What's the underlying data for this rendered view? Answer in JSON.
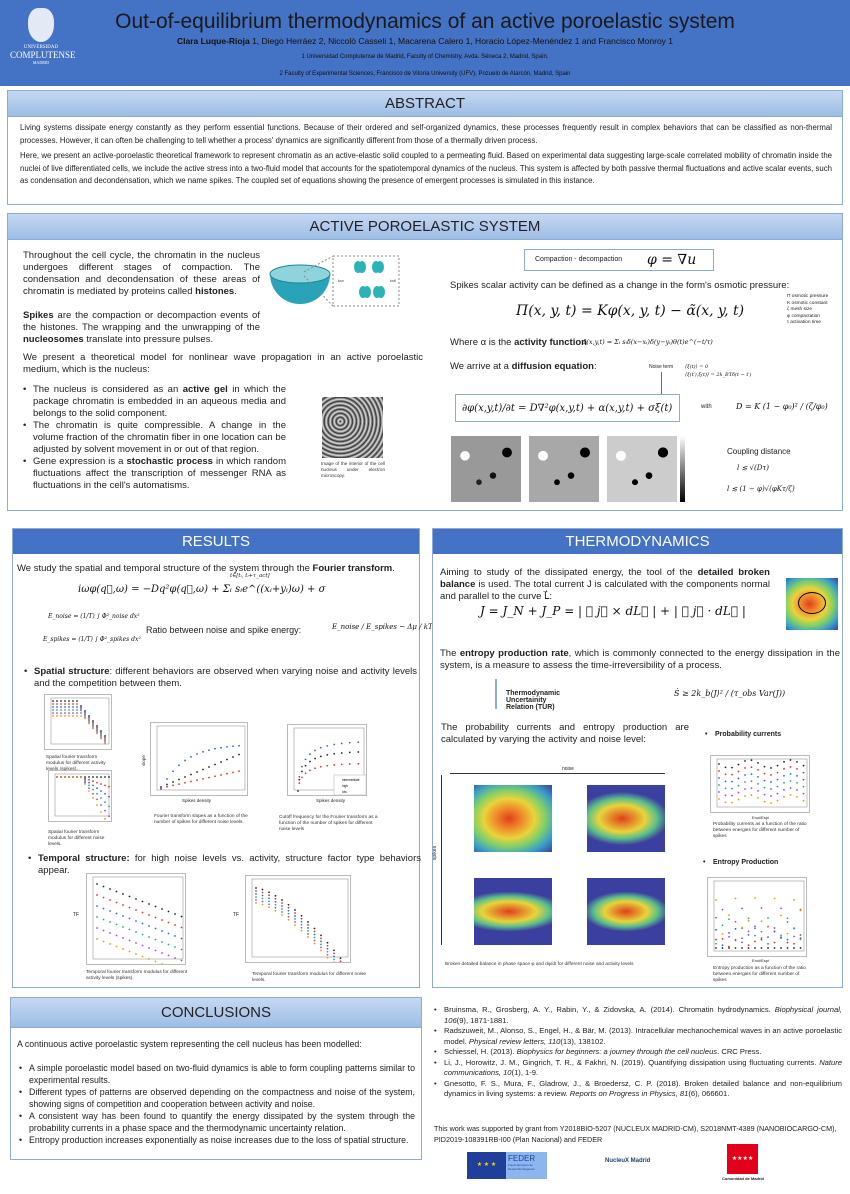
{
  "header": {
    "title": "Out-of-equilibrium thermodynamics of an active poroelastic system",
    "authors_lead": "Clara Luque-Rioja",
    "authors_rest": " 1, Diego Herráez 2, Niccolò Casseli 1, Macarena Calero 1, Horacio López-Menéndez 1 and Francisco Monroy 1",
    "affiliation_1": "1 Universidad Complutense de Madrid, Faculty of Chemistry, Avda. Séneca 2, Madrid, Spain.",
    "affiliation_2": "2 Faculty of Experimental Sciences, Francisco de Vitoria University (UFV), Pozuelo de Alarcón, Madrid, Spain",
    "logo": {
      "line1": "UNIVERSIDAD",
      "line2": "COMPLUTENSE",
      "line3": "MADRID"
    }
  },
  "abstract": {
    "title": "ABSTRACT",
    "p1": "Living systems dissipate energy constantly as they perform essential functions. Because of their ordered and self-organized dynamics, these processes frequently result in complex behaviors that can be classified as non-thermal processes. However, it can often be challenging to tell whether a process' dynamics are significantly different from those of a thermally driven process.",
    "p2": "Here, we present an active-poroelastic theoretical framework to represent chromatin as an active-elastic solid coupled to a permeating fluid. Based on experimental data suggesting large-scale correlated mobility of chromatin inside the nuclei of live differentiated cells, we include the active stress into a two-fluid model that accounts for the spatiotemporal dynamics of the nucleus. This system is affected by both passive thermal fluctuations and active scalar events, such as condensation and decondensation, which we name spikes. The coupled set of equations showing the presence of emergent processes is simulated in this instance."
  },
  "aps": {
    "title": "ACTIVE POROELASTIC SYSTEM",
    "p1a": "Throughout the cell cycle, the chromatin in the nucleus undergoes different stages of compaction. The condensation and decondensation of these areas of chromatin is mediated by proteins called ",
    "p1b": "histones",
    "p1c": ".",
    "p2a": "Spikes",
    "p2b": " are the compaction or decompaction events of the histones. The wrapping and the unwrapping of the ",
    "p2c": "nucleosomes",
    "p2d": " translate into pressure pulses.",
    "p3": "We present a theoretical model for nonlinear wave propagation in an active poroelastic medium, which is the nucleus:",
    "b1a": "The nucleus is considered as an ",
    "b1b": "active gel",
    "b1c": " in which the package chromatin is embedded in an aqueous media and belongs to the solid component.",
    "b2": "The chromatin is quite compressible. A change in the volume fraction of the chromatin fiber in one location can be adjusted by solvent movement in or out of that region.",
    "b3a": "Gene expression is a ",
    "b3b": "stochastic process",
    "b3c": " in which random fluctuations affect the transcription of messenger RNA as fluctuations in the cell's automatisms.",
    "micro_caption": "Image of the interior of the cell nucleus under electron microscopy.",
    "kon": "kon",
    "koff": "koff",
    "compaction_label": "Compaction - decompaction",
    "compaction_eq": "φ = ∇u",
    "osmotic_text": "Spikes scalar activity can be defined as a change in the form's osmotic pressure:",
    "osmotic_eq": "Π(x, y, t) = Kφ(x, y, t) − α̃(x, y, t)",
    "legend": [
      "Π osmotic pressure",
      "K osmotic constant",
      "ζ mesh size",
      "φ compactation",
      "τ activation time"
    ],
    "activity_a": "Where α is the ",
    "activity_b": "activity function",
    "activity_eq": "α̃(x,y,t) = Σᵢ sᵢδ(x−xᵢ)δ(y−yᵢ)θ(t)e^(−t/τ)",
    "diffusion_a": "We arrive at a ",
    "diffusion_b": "diffusion equation",
    ":": ":",
    "diffusion_c": ":",
    "noise_label": "Noise term",
    "noise_eq1": "⟨ξ(t)⟩ = 0",
    "noise_eq2": "⟨ξ(t′),ξ(t)⟩ = 2k_BTδ(t − t′)",
    "diffusion_eq": "∂φ(x,y,t)/∂t = D∇²φ(x,y,t) + α(x,y,t) + σξ(t)",
    "with": "with",
    "D_eq": "D = K (1 − φ₀)² / (ζ/φ₀)",
    "coupling_title": "Coupling distance",
    "coupling_eq1": "l ≲ √(Dτ)",
    "coupling_eq2": "l ≲ (1 − φ)√(φKτ/ζ)"
  },
  "results": {
    "title": "RESULTS",
    "intro_a": "We study the spatial and temporal structure of the system through the ",
    "intro_b": "Fourier transform",
    "ft_eq": "iωφ(q⃗,ω) = −Dq²φ(q⃗,ω) + Σᵢ sᵢe^((xᵢ+yᵢ)ω) + σ",
    "ft_sum_range": "t∈[tᵢ, tᵢ+τ_act]",
    "e_noise": "E_noise = (1/T) ∫ Φ²_noise dx²",
    "e_spikes": "E_spikes = (1/T) ∫ Φ²_spikes dx²",
    "ratio_label": "Ratio between noise and spike energy:",
    "ratio_eq": "E_noise / E_spikes ~ Δμ / kT",
    "spatial_a": "Spatial structure",
    "spatial_b": ": different behaviors are observed when varying noise and activity levels and the competition between them.",
    "cap1": "Spatial fourier transform modulus for different activity levels (spikes).",
    "cap2": "Spatial fourier transform modulus for different noise levels.",
    "cap3": "Fourier transform slopes as a function of the number of spikes for different noise levels.",
    "cap4": "Cutoff frequency for the Fourier transform as a function of the number of spikes for different noise levels",
    "fig3_xlabel": "Spikes density",
    "fig3_ylabel": "slope",
    "fig4_xlabel": "Spikes density",
    "fig4_legend": [
      "intermediate",
      "high",
      "low"
    ],
    "temporal_a": "Temporal structure:",
    "temporal_b": " for high noise levels vs. activity, structure factor type behaviors appear.",
    "cap5": "Temporal fourier transform modulus for different activity levels (spikes).",
    "cap6": "Temporal fourier transform modulus for different noise levels.",
    "tf_ylabel": "TF",
    "tf_xlabel": "f"
  },
  "thermo": {
    "title": "THERMODYNAMICS",
    "p1a": "Aiming to study of the dissipated energy, the tool of the ",
    "p1b": "detailed broken balance",
    "p1c": " is used. The total current J is calculated with the components normal and parallel to the curve L⃗:",
    "j_eq": "J = J_N + J_P = | ∮ j⃗ × dL⃗ | + | ∮ j⃗ · dL⃗ |",
    "p2a": "The ",
    "p2b": "entropy production rate",
    "p2c": ", which is commonly connected to the energy dissipation in the system, is a measure to assess the time-irreversibility of a process.",
    "tur_label": "Thermodynamic Uncertainity Relation (TUR)",
    "tur_eq": "Ṡ ≥ 2k_b⟨J⟩² / (τ_obs Var(J))",
    "p3": "The probability currents and entropy production are calculated by varying the activity and noise level:",
    "noise_axis": "noise",
    "spikes_axis": "spikes",
    "phase_caption": "Broken detailed balance in phase space φ and dφ/dt for different noise and activity levels",
    "prob_title": "Probability currents",
    "prob_caption": "Probability currents as a function of the ratio between energies for different number of spikes",
    "prob_legend": [
      "1 spike",
      "20 spikes",
      "50 spikes",
      "100 spikes",
      "200 spikes",
      "400 spikes",
      "1000 spikes"
    ],
    "entropy_title": "Entropy Production",
    "entropy_caption": "Entropy production as a function of the ratio between energies for different number of spikes",
    "entropy_legend": [
      "20 spikes",
      "50 spikes",
      "100 spikes",
      "200 spikes",
      "400 spikes",
      "1000 spikes"
    ],
    "xlabel": "Enoi/Espi"
  },
  "conclusions": {
    "title": "CONCLUSIONS",
    "intro": "A continuous active poroelastic system representing the cell nucleus has been modelled:",
    "items": [
      "A simple poroelastic model based on two-fluid dynamics is able to form coupling patterns similar to experimental results.",
      "Different types of patterns are observed depending on the compactness and noise of the system, showing signs of competition and cooperation between activity and noise.",
      "A consistent way has been found to quantify the energy dissipated by the system through the probability currents in a phase space and the thermodynamic uncertainty relation.",
      "Entropy production increases exponentially as noise increases due to the loss of spatial structure."
    ]
  },
  "references": [
    {
      "a": "Bruinsma, R., Grosberg, A. Y., Rabin, Y., & Zidovska, A. (2014). Chromatin hydrodynamics. ",
      "i": "Biophysical journal, 106",
      "b": "(9), 1871-1881."
    },
    {
      "a": "Radszuweit, M., Alonso, S., Engel, H., & Bär, M. (2013). Intracellular mechanochemical waves in an active poroelastic model. ",
      "i": "Physical review letters, 110",
      "b": "(13), 138102."
    },
    {
      "a": "Schiessel, H. (2013). ",
      "i": "Biophysics for beginners: a journey through the cell nucleus",
      "b": ". CRC Press."
    },
    {
      "a": "Li, J., Horowitz, J. M., Gingrich, T. R., & Fakhri, N. (2019). Quantifying dissipation using fluctuating currents. ",
      "i": "Nature communications, 10",
      "b": "(1), 1-9."
    },
    {
      "a": "Gnesotto, F. S., Mura, F., Gladrow, J., & Broedersz, C. P. (2018). Broken detailed balance and non-equilibrium dynamics in living systems: a review. ",
      "i": "Reports on Progress in Physics, 81",
      "b": "(6), 066601."
    }
  ],
  "funding": "This work was supported by grant from Y2018BIO-5207 (NUCLEUX MADRID-CM), S2018NMT-4389 (NANOBIOCARGO-CM), PID2019-108391RB-I00 (Plan Nacional) and FEDER",
  "logos": {
    "feder": "FEDER",
    "feder_sub": "Fondo Europeo de Desarrollo Regional",
    "nucleux": "NucleuX Madrid",
    "cam": "Comunidad de Madrid"
  },
  "colors": {
    "header": "#4472c4",
    "section_light": "#9dbde6",
    "border": "#8eaadb"
  }
}
